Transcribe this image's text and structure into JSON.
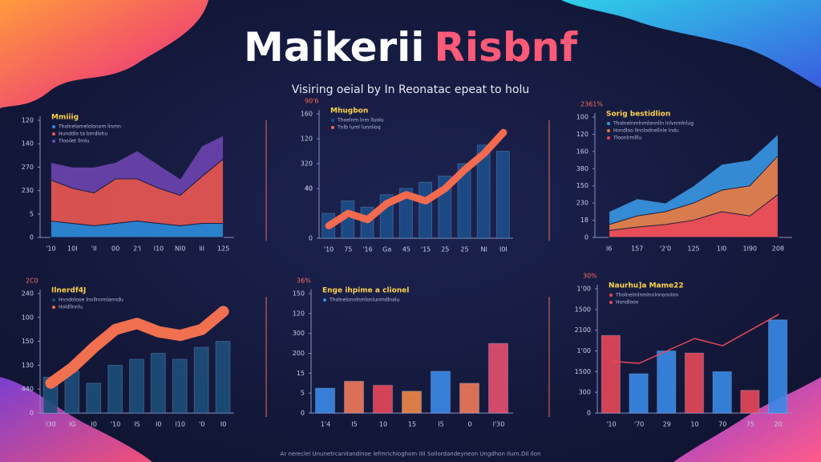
{
  "header": {
    "title": "Maikerii",
    "title_accent": "Risbnf",
    "subtitle": "Visiring oeial by In Reonatac epeat to holu"
  },
  "footer": "Ar nereclel Ununetrcanitandinoe lefmrichioghom IIII Sollordandeyneon Ungdhon Ilurn.DII Ilon",
  "chart_data": [
    {
      "type": "area",
      "stacked": true,
      "title": "Mmiiig",
      "note": "",
      "categories": [
        "'10",
        "10I",
        "'II",
        "00",
        "2'I",
        "I10",
        "NI0",
        "lil",
        "125"
      ],
      "ylim": [
        0,
        100
      ],
      "yticks": [
        0,
        {
          "value": 20,
          "label": "5"
        },
        {
          "value": 40,
          "label": "230"
        },
        {
          "value": 60,
          "label": "270"
        },
        {
          "value": 80,
          "label": "140"
        },
        {
          "value": 100,
          "label": "120"
        }
      ],
      "series": [
        {
          "name": "Tholnelamelolonom linmn",
          "color": "#2f8fe0",
          "values": [
            14,
            12,
            10,
            12,
            14,
            12,
            10,
            12,
            12
          ]
        },
        {
          "name": "Hunddlo ta bmdlohu",
          "color": "#f25a52",
          "values": [
            35,
            30,
            28,
            38,
            36,
            30,
            26,
            40,
            55
          ]
        },
        {
          "name": "Tlooilet llmlu",
          "color": "#7046b4",
          "values": [
            15,
            18,
            22,
            14,
            24,
            20,
            14,
            26,
            20
          ]
        }
      ]
    },
    {
      "type": "line",
      "title": "Mhugbon",
      "note": "90'6",
      "categories": [
        "'10",
        "75",
        "'16",
        "Ga",
        "45",
        "'15",
        "25",
        "25",
        "NI",
        "I0I"
      ],
      "ylim": [
        0,
        100
      ],
      "yticks": [
        0,
        40,
        {
          "value": 40,
          "label": "40"
        },
        {
          "value": 60,
          "label": "320"
        },
        {
          "value": 80,
          "label": "120"
        },
        {
          "value": 100,
          "label": "160"
        }
      ],
      "series": [
        {
          "name": "Thoelnm lnm lluolu",
          "color": "#1d4e8a",
          "type": "bar",
          "values": [
            20,
            30,
            25,
            35,
            40,
            45,
            50,
            60,
            75,
            70
          ]
        },
        {
          "name": "Tnlb luml lunnlioq",
          "color": "#f26a4f",
          "values": [
            10,
            20,
            15,
            28,
            35,
            30,
            40,
            55,
            68,
            85
          ]
        }
      ]
    },
    {
      "type": "area",
      "stacked": false,
      "title": "Sorig bestidlion",
      "note": "2361%",
      "categories": [
        "I6",
        "157",
        "'2'0",
        "125",
        "1I0",
        "1I90",
        "208"
      ],
      "ylim": [
        0,
        140
      ],
      "yticks": [
        0,
        {
          "value": 20,
          "label": "18"
        },
        {
          "value": 40,
          "label": "230"
        },
        {
          "value": 60,
          "label": "150"
        },
        {
          "value": 80,
          "label": "380"
        },
        {
          "value": 100,
          "label": "160"
        },
        {
          "value": 120,
          "label": "120"
        },
        {
          "value": 140,
          "label": "100"
        }
      ],
      "series": [
        {
          "name": "Tholnelnmlnmlonnlln lnlvnmlnlug",
          "color": "#3a9be8",
          "values": [
            30,
            45,
            40,
            60,
            85,
            90,
            120
          ]
        },
        {
          "name": "Hondloo llnnlodnellnle lndu",
          "color": "#f07a3a",
          "values": [
            15,
            25,
            30,
            40,
            55,
            60,
            95
          ]
        },
        {
          "name": "Tloonlrmlllu",
          "color": "#e8485a",
          "values": [
            8,
            12,
            15,
            20,
            30,
            25,
            50
          ]
        }
      ]
    },
    {
      "type": "bar",
      "title": "Ilnerdf4J",
      "note": "2C0",
      "categories": [
        "I30",
        "IG",
        "I0",
        "'10",
        "IS",
        "I0",
        "I10",
        "'0",
        "I0"
      ],
      "ylim": [
        0,
        100
      ],
      "yticks": [
        0,
        {
          "value": 20,
          "label": "440"
        },
        {
          "value": 40,
          "label": "130"
        },
        {
          "value": 60,
          "label": "150"
        },
        {
          "value": 80,
          "label": "100"
        },
        {
          "value": 100,
          "label": "240"
        }
      ],
      "series": [
        {
          "name": "Hnndolooe lnnllnnmlanndu",
          "color": "#1e4f7a",
          "values": [
            30,
            35,
            25,
            40,
            45,
            50,
            45,
            55,
            60
          ]
        },
        {
          "name": "Holdllnnlu",
          "color": "#f0704f",
          "type": "line",
          "values": [
            25,
            38,
            55,
            70,
            75,
            68,
            65,
            70,
            85
          ]
        }
      ]
    },
    {
      "type": "bar",
      "title": "Enge ihpime a clionel",
      "note": "36%",
      "categories": [
        "1'4",
        "I5",
        "10",
        "15",
        "I5",
        "0",
        "I'30"
      ],
      "ylim": [
        0,
        120
      ],
      "yticks": [
        0,
        {
          "value": 20,
          "label": "5"
        },
        {
          "value": 40,
          "label": "15"
        },
        {
          "value": 60,
          "label": "200"
        },
        {
          "value": 80,
          "label": "300"
        },
        {
          "value": 100,
          "label": "120"
        },
        {
          "value": 120,
          "label": "150"
        }
      ],
      "series": [
        {
          "name": "Tholnelonnlnmlonlunmdlnalu",
          "color": "#3a8ae8",
          "colors": [
            "#3a8ae8",
            "#f07a5a",
            "#e8485a",
            "#f0884a",
            "#3a8ae8",
            "#f07a5a",
            "#e85070"
          ],
          "values": [
            25,
            32,
            28,
            22,
            42,
            30,
            70
          ]
        }
      ]
    },
    {
      "type": "bar",
      "title": "Naurhu]a Mame22",
      "note": "30%",
      "categories": [
        "'10",
        "'70",
        "29",
        "10",
        "70",
        "75",
        "20"
      ],
      "ylim": [
        0,
        120
      ],
      "yticks": [
        0,
        {
          "value": 20,
          "label": "300"
        },
        {
          "value": 40,
          "label": "1500"
        },
        {
          "value": 60,
          "label": "1'00"
        },
        {
          "value": 80,
          "label": "2100"
        },
        {
          "value": 100,
          "label": "1500"
        },
        {
          "value": 120,
          "label": "1'00"
        }
      ],
      "series": [
        {
          "name": "Tholnelmlnmlnnlnnonnlnn",
          "color": "#e8485a",
          "colors": [
            "#e8485a",
            "#3a8ae8",
            "#3a8ae8",
            "#e8485a",
            "#3a8ae8",
            "#e8485a",
            "#3a8ae8"
          ],
          "values": [
            75,
            38,
            60,
            58,
            40,
            22,
            90
          ]
        },
        {
          "name": "Hondlooo",
          "color": "#e8485a",
          "type": "line",
          "values": [
            50,
            48,
            60,
            72,
            65,
            80,
            95
          ]
        }
      ]
    }
  ]
}
